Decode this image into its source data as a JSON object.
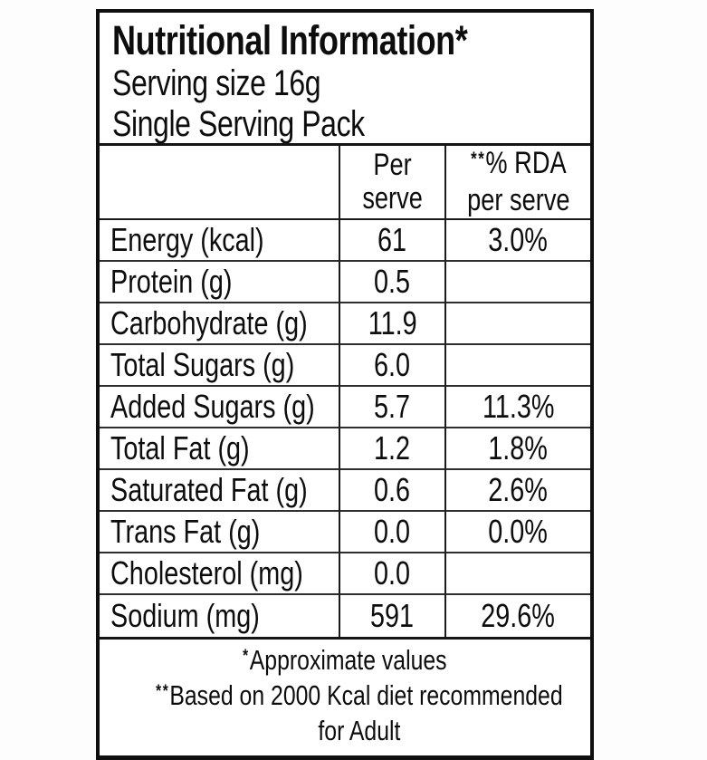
{
  "label": {
    "title": "Nutritional Information*",
    "serving_size": "Serving size 16g",
    "pack_type": "Single Serving Pack",
    "columns": {
      "per_serve_line1": "Per",
      "per_serve_line2": "serve",
      "rda_marker": "**",
      "rda_line1": "% RDA",
      "rda_line2": "per serve"
    },
    "rows": [
      {
        "nutrient": "Energy (kcal)",
        "per_serve": "61",
        "rda": "3.0%"
      },
      {
        "nutrient": "Protein (g)",
        "per_serve": "0.5",
        "rda": ""
      },
      {
        "nutrient": "Carbohydrate (g)",
        "per_serve": "11.9",
        "rda": ""
      },
      {
        "nutrient": "Total Sugars (g)",
        "per_serve": "6.0",
        "rda": ""
      },
      {
        "nutrient": "Added Sugars (g)",
        "per_serve": "5.7",
        "rda": "11.3%"
      },
      {
        "nutrient": "Total Fat (g)",
        "per_serve": "1.2",
        "rda": "1.8%"
      },
      {
        "nutrient": "Saturated Fat (g)",
        "per_serve": "0.6",
        "rda": "2.6%"
      },
      {
        "nutrient": "Trans Fat (g)",
        "per_serve": "0.0",
        "rda": "0.0%"
      },
      {
        "nutrient": "Cholesterol (mg)",
        "per_serve": "0.0",
        "rda": ""
      },
      {
        "nutrient": "Sodium (mg)",
        "per_serve": "591",
        "rda": "29.6%"
      }
    ],
    "footnotes": {
      "note1_marker": "*",
      "note1_text": "Approximate values",
      "note2_marker": "**",
      "note2_line1": "Based on 2000 Kcal diet recommended",
      "note2_line2": "for Adult"
    },
    "colors": {
      "text": "#0d0d0d",
      "border": "#0f0f0f",
      "row_line": "#2e2e2e",
      "background": "#ffffff"
    }
  }
}
